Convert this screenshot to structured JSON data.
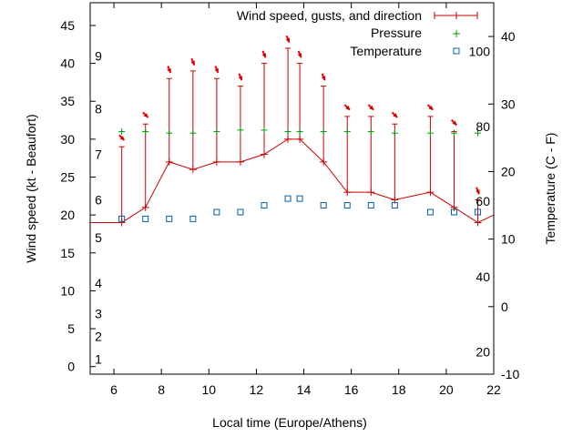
{
  "chart_data": {
    "type": "line",
    "xlabel": "Local time (Europe/Athens)",
    "ylabel": "Wind speed (kt - Beaufort)",
    "y2label": "Temperature (C - F)",
    "xlim": [
      5,
      22
    ],
    "ylim": [
      -1,
      48
    ],
    "y2lim": [
      -10,
      45
    ],
    "x_ticks": [
      6,
      8,
      10,
      12,
      14,
      16,
      18,
      20,
      22
    ],
    "y_ticks": [
      0,
      5,
      10,
      15,
      20,
      25,
      30,
      35,
      40,
      45
    ],
    "y2_ticks": [
      -10,
      0,
      10,
      20,
      30,
      40
    ],
    "beaufort_labels": [
      {
        "label": "1",
        "y": 1
      },
      {
        "label": "2",
        "y": 4
      },
      {
        "label": "3",
        "y": 7
      },
      {
        "label": "4",
        "y": 11
      },
      {
        "label": "5",
        "y": 17
      },
      {
        "label": "6",
        "y": 22
      },
      {
        "label": "7",
        "y": 28
      },
      {
        "label": "8",
        "y": 34
      },
      {
        "label": "9",
        "y": 41
      }
    ],
    "fahrenheit_labels": [
      {
        "label": "20",
        "y2": -6.7
      },
      {
        "label": "40",
        "y2": 4.4
      },
      {
        "label": "60",
        "y2": 15.6
      },
      {
        "label": "80",
        "y2": 26.7
      },
      {
        "label": "100",
        "y2": 37.8
      }
    ],
    "legend_position": "top-right",
    "series": [
      {
        "name": "Wind speed, gusts, and direction",
        "color": "#cc0000",
        "x": [
          5,
          6.33,
          7.33,
          8.33,
          9.33,
          10.33,
          11.33,
          12.33,
          13.33,
          13.83,
          14.83,
          15.83,
          16.83,
          17.83,
          19.33,
          20.33,
          21.33,
          22
        ],
        "values": [
          19,
          19,
          21,
          27,
          26,
          27,
          27,
          28,
          30,
          30,
          27,
          23,
          23,
          22,
          23,
          21,
          19,
          20
        ],
        "gusts": [
          null,
          29,
          32,
          38,
          39,
          38,
          37,
          40,
          42,
          40,
          37,
          33,
          33,
          32,
          33,
          31,
          22,
          null
        ],
        "directions": [
          null,
          "NW",
          "NW",
          "NNW",
          "NNW",
          "NNW",
          "NNW",
          "NNW",
          "NNW",
          "NNW",
          "NNW",
          "NW",
          "NW",
          "NW",
          "NW",
          "NW",
          "NNW",
          null
        ]
      },
      {
        "name": "Pressure",
        "color": "#00a000",
        "x": [
          6.33,
          7.33,
          8.33,
          9.33,
          10.33,
          11.33,
          12.33,
          13.33,
          13.83,
          14.83,
          15.83,
          16.83,
          17.83,
          19.33,
          20.33,
          21.33
        ],
        "values": [
          31,
          31,
          30.8,
          30.8,
          31,
          31.2,
          31.2,
          31,
          31,
          31,
          31,
          31,
          30.8,
          30.8,
          30.8,
          30.8
        ]
      },
      {
        "name": "Temperature",
        "color": "#0060ad",
        "axis": "y2",
        "x": [
          6.33,
          7.33,
          8.33,
          9.33,
          10.33,
          11.33,
          12.33,
          13.33,
          13.83,
          14.83,
          15.83,
          16.83,
          17.83,
          19.33,
          20.33,
          21.33
        ],
        "values": [
          13,
          13,
          13,
          13,
          14,
          14,
          15,
          16,
          16,
          15,
          15,
          15,
          15,
          14,
          14,
          14
        ]
      }
    ]
  }
}
